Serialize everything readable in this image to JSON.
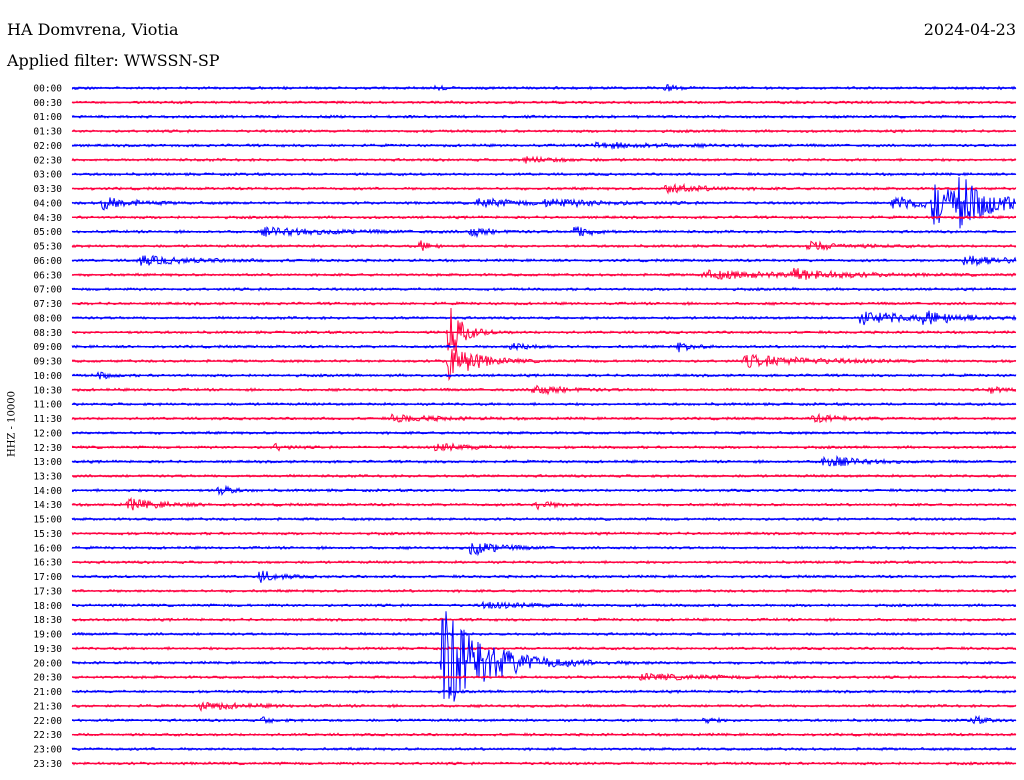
{
  "header": {
    "station": "HA Domvrena, Viotia",
    "date": "2024-04-23",
    "filter": "Applied filter: WWSSN-SP"
  },
  "chart_data": {
    "type": "line",
    "ylabel": "HHZ - 10000",
    "rows": [
      "00:00",
      "00:30",
      "01:00",
      "01:30",
      "02:00",
      "02:30",
      "03:00",
      "03:30",
      "04:00",
      "04:30",
      "05:00",
      "05:30",
      "06:00",
      "06:30",
      "07:00",
      "07:30",
      "08:00",
      "08:30",
      "09:00",
      "09:30",
      "10:00",
      "10:30",
      "11:00",
      "11:30",
      "12:00",
      "12:30",
      "13:00",
      "13:30",
      "14:00",
      "14:30",
      "15:00",
      "15:30",
      "16:00",
      "16:30",
      "17:00",
      "17:30",
      "18:00",
      "18:30",
      "19:00",
      "19:30",
      "20:00",
      "20:30",
      "21:00",
      "21:30",
      "22:00",
      "22:30",
      "23:00",
      "23:30"
    ],
    "row_colors": [
      "#0000ff",
      "#ff0040"
    ],
    "row_duration_min": 30,
    "grid": false,
    "legend": "none",
    "events": [
      {
        "row": 0,
        "t": 18.8,
        "amp": 4,
        "dur": 0.3
      },
      {
        "row": 0,
        "t": 11.5,
        "amp": 2,
        "dur": 0.3
      },
      {
        "row": 4,
        "t": 16.5,
        "amp": 3,
        "dur": 2.0
      },
      {
        "row": 5,
        "t": 14.3,
        "amp": 3,
        "dur": 1.0
      },
      {
        "row": 7,
        "t": 18.8,
        "amp": 5,
        "dur": 1.0
      },
      {
        "row": 8,
        "t": 0.9,
        "amp": 7,
        "dur": 0.8
      },
      {
        "row": 8,
        "t": 12.8,
        "amp": 5,
        "dur": 1.2
      },
      {
        "row": 8,
        "t": 15.0,
        "amp": 4,
        "dur": 1.5
      },
      {
        "row": 8,
        "t": 26.0,
        "amp": 8,
        "dur": 1.2
      },
      {
        "row": 8,
        "t": 27.3,
        "amp": 25,
        "dur": 0.8
      },
      {
        "row": 8,
        "t": 28.1,
        "amp": 22,
        "dur": 1.0
      },
      {
        "row": 10,
        "t": 12.6,
        "amp": 6,
        "dur": 0.5
      },
      {
        "row": 10,
        "t": 15.9,
        "amp": 7,
        "dur": 0.5
      },
      {
        "row": 10,
        "t": 6.0,
        "amp": 4,
        "dur": 2.0
      },
      {
        "row": 11,
        "t": 11.0,
        "amp": 7,
        "dur": 0.3
      },
      {
        "row": 11,
        "t": 23.3,
        "amp": 5,
        "dur": 1.0
      },
      {
        "row": 12,
        "t": 2.0,
        "amp": 5,
        "dur": 1.5
      },
      {
        "row": 12,
        "t": 28.3,
        "amp": 6,
        "dur": 1.2
      },
      {
        "row": 13,
        "t": 22.7,
        "amp": 6,
        "dur": 1.2
      },
      {
        "row": 13,
        "t": 20.0,
        "amp": 4,
        "dur": 2.5
      },
      {
        "row": 16,
        "t": 25.0,
        "amp": 7,
        "dur": 1.5
      },
      {
        "row": 16,
        "t": 27.0,
        "amp": 6,
        "dur": 1.0
      },
      {
        "row": 17,
        "t": 11.9,
        "amp": 35,
        "dur": 0.4
      },
      {
        "row": 18,
        "t": 19.2,
        "amp": 6,
        "dur": 0.4
      },
      {
        "row": 18,
        "t": 13.9,
        "amp": 5,
        "dur": 0.5
      },
      {
        "row": 19,
        "t": 21.3,
        "amp": 6,
        "dur": 2.0
      },
      {
        "row": 19,
        "t": 11.9,
        "amp": 25,
        "dur": 0.7
      },
      {
        "row": 20,
        "t": 0.8,
        "amp": 5,
        "dur": 0.3
      },
      {
        "row": 21,
        "t": 14.6,
        "amp": 6,
        "dur": 0.8
      },
      {
        "row": 21,
        "t": 29.1,
        "amp": 5,
        "dur": 0.3
      },
      {
        "row": 23,
        "t": 10.1,
        "amp": 4,
        "dur": 1.2
      },
      {
        "row": 23,
        "t": 23.5,
        "amp": 4,
        "dur": 0.8
      },
      {
        "row": 25,
        "t": 6.4,
        "amp": 5,
        "dur": 0.3
      },
      {
        "row": 25,
        "t": 11.5,
        "amp": 4,
        "dur": 1.0
      },
      {
        "row": 26,
        "t": 23.8,
        "amp": 7,
        "dur": 0.9
      },
      {
        "row": 28,
        "t": 4.6,
        "amp": 8,
        "dur": 0.3
      },
      {
        "row": 29,
        "t": 1.7,
        "amp": 6,
        "dur": 1.0
      },
      {
        "row": 29,
        "t": 14.6,
        "amp": 6,
        "dur": 0.5
      },
      {
        "row": 32,
        "t": 12.6,
        "amp": 8,
        "dur": 0.8
      },
      {
        "row": 34,
        "t": 5.9,
        "amp": 7,
        "dur": 0.5
      },
      {
        "row": 36,
        "t": 13.0,
        "amp": 3,
        "dur": 1.5
      },
      {
        "row": 40,
        "t": 11.7,
        "amp": 60,
        "dur": 1.3
      },
      {
        "row": 41,
        "t": 18.0,
        "amp": 3,
        "dur": 2.0
      },
      {
        "row": 43,
        "t": 4.0,
        "amp": 4,
        "dur": 1.2
      },
      {
        "row": 44,
        "t": 6.0,
        "amp": 4,
        "dur": 0.3
      },
      {
        "row": 44,
        "t": 20.0,
        "amp": 4,
        "dur": 0.3
      },
      {
        "row": 44,
        "t": 28.5,
        "amp": 5,
        "dur": 0.4
      }
    ]
  }
}
